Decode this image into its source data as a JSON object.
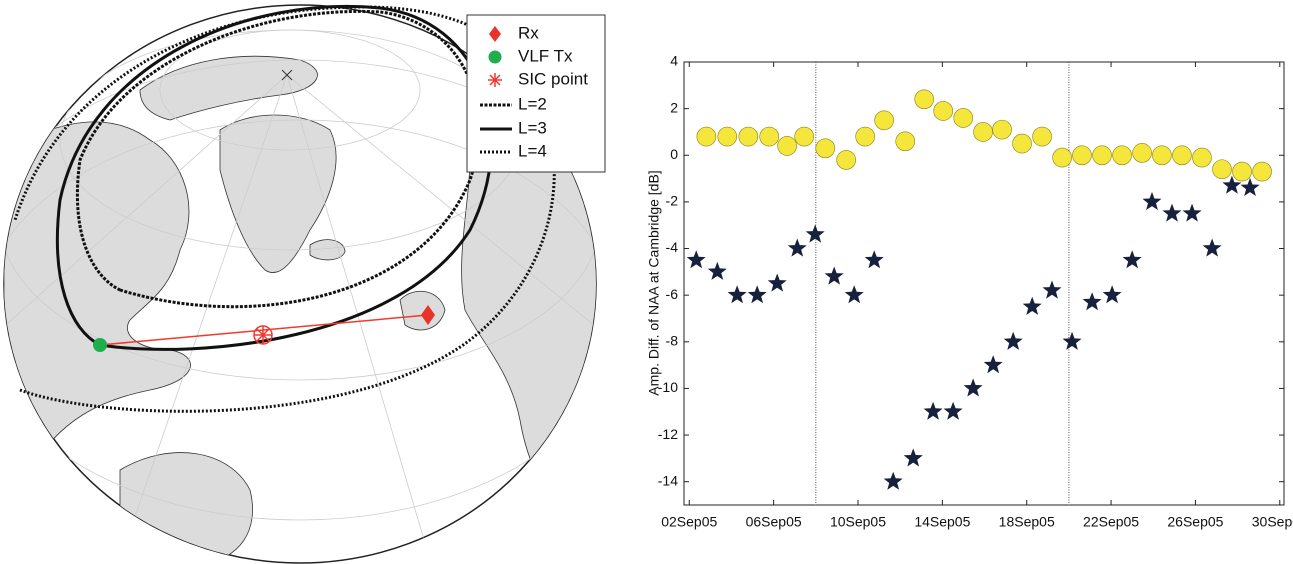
{
  "map": {
    "legend": [
      "Rx",
      "VLF Tx",
      "SIC point",
      "L=2",
      "L=3",
      "L=4"
    ]
  },
  "chart_data": {
    "type": "scatter",
    "y_label": "Amp. Diff. of NAA at Cambridge [dB]",
    "xlim": [
      1.75,
      30.2
    ],
    "ylim": [
      -15,
      4
    ],
    "xticks": [
      {
        "value": 2,
        "label": "02Sep05"
      },
      {
        "value": 6,
        "label": "06Sep05"
      },
      {
        "value": 10,
        "label": "10Sep05"
      },
      {
        "value": 14,
        "label": "14Sep05"
      },
      {
        "value": 18,
        "label": "18Sep05"
      },
      {
        "value": 22,
        "label": "22Sep05"
      },
      {
        "value": 26,
        "label": "26Sep05"
      },
      {
        "value": 30,
        "label": "30Sep05"
      }
    ],
    "yticks": [
      -14,
      -12,
      -10,
      -8,
      -6,
      -4,
      -2,
      0,
      2,
      4
    ],
    "vlines": [
      8,
      20
    ],
    "series": [
      {
        "marker": "circle",
        "color": "#f5e63c",
        "x": [
          2.81,
          3.8,
          4.8,
          5.79,
          6.64,
          7.45,
          8.45,
          9.44,
          10.34,
          11.24,
          12.24,
          13.14,
          14.04,
          14.99,
          15.93,
          16.83,
          17.78,
          18.73,
          19.68,
          20.62,
          21.57,
          22.52,
          23.47,
          24.41,
          25.36,
          26.31,
          27.26,
          28.21,
          29.16
        ],
        "values": [
          0.8,
          0.8,
          0.8,
          0.8,
          0.4,
          0.8,
          0.3,
          -0.2,
          0.8,
          1.5,
          0.6,
          2.4,
          1.9,
          1.6,
          1.0,
          1.1,
          0.5,
          0.8,
          -0.1,
          0,
          0,
          0,
          0.1,
          0,
          0,
          -0.1,
          -0.6,
          -0.7,
          -0.7
        ]
      },
      {
        "marker": "star",
        "color": "#17213d",
        "x": [
          2.33,
          3.33,
          4.27,
          5.22,
          6.17,
          7.12,
          7.97,
          8.87,
          9.82,
          10.77,
          11.67,
          12.62,
          13.56,
          14.51,
          15.46,
          16.41,
          17.36,
          18.26,
          19.2,
          20.15,
          21.1,
          22.05,
          23.0,
          23.94,
          24.89,
          25.84,
          26.79,
          27.73,
          28.59
        ],
        "values": [
          -4.5,
          -5.0,
          -6,
          -6,
          -5.5,
          -4.0,
          -3.4,
          -5.2,
          -6,
          -4.5,
          -14,
          -13,
          -11,
          -11,
          -10,
          -9,
          -8,
          -6.5,
          -5.8,
          -8,
          -6.3,
          -6,
          -4.5,
          -2,
          -2.5,
          -2.5,
          -4,
          -1.3,
          -1.4
        ]
      }
    ]
  }
}
